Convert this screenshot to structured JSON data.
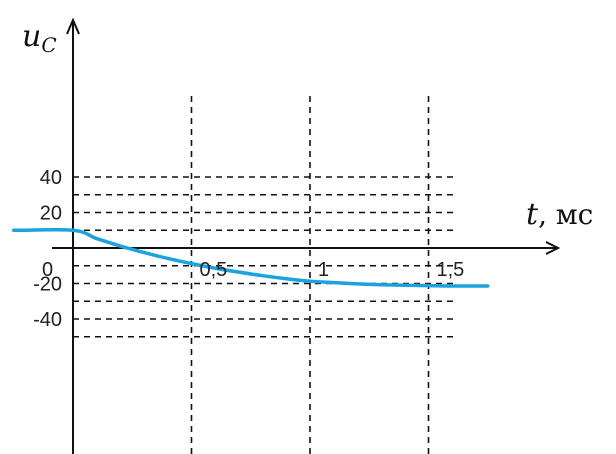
{
  "chart_data": {
    "type": "line",
    "ylabel": {
      "main": "u",
      "sub": "C"
    },
    "xlabel": {
      "main": "t",
      "unit": ", мс"
    },
    "origin_label": "0",
    "x_ticks": [
      {
        "value": 0.5,
        "label": "0,5"
      },
      {
        "value": 1,
        "label": "1"
      },
      {
        "value": 1.5,
        "label": "1,5"
      }
    ],
    "y_ticks": [
      {
        "value": 40,
        "label": "40"
      },
      {
        "value": 20,
        "label": "20"
      },
      {
        "value": -20,
        "label": "-20"
      },
      {
        "value": -40,
        "label": "-40"
      }
    ],
    "grid_y": [
      40,
      30,
      20,
      10,
      -10,
      -20,
      -30,
      -40,
      -50
    ],
    "grid_x": [
      0.5,
      1,
      1.5
    ],
    "xlim": [
      -0.25,
      2.0
    ],
    "ylim": [
      -52,
      55
    ],
    "series": [
      {
        "color": "#1aa3e0",
        "x": [
          -0.25,
          0,
          0.1,
          0.2,
          0.3,
          0.4,
          0.5,
          0.6,
          0.7,
          0.8,
          0.9,
          1.0,
          1.1,
          1.2,
          1.3,
          1.4,
          1.5,
          1.6,
          1.75
        ],
        "y": [
          10,
          10,
          5.3,
          1.1,
          -2.6,
          -5.9,
          -8.8,
          -11.4,
          -13.6,
          -15.6,
          -17.3,
          -18.7,
          -19.5,
          -20.2,
          -20.7,
          -21.0,
          -21.2,
          -21.4,
          -21.4
        ]
      }
    ]
  }
}
